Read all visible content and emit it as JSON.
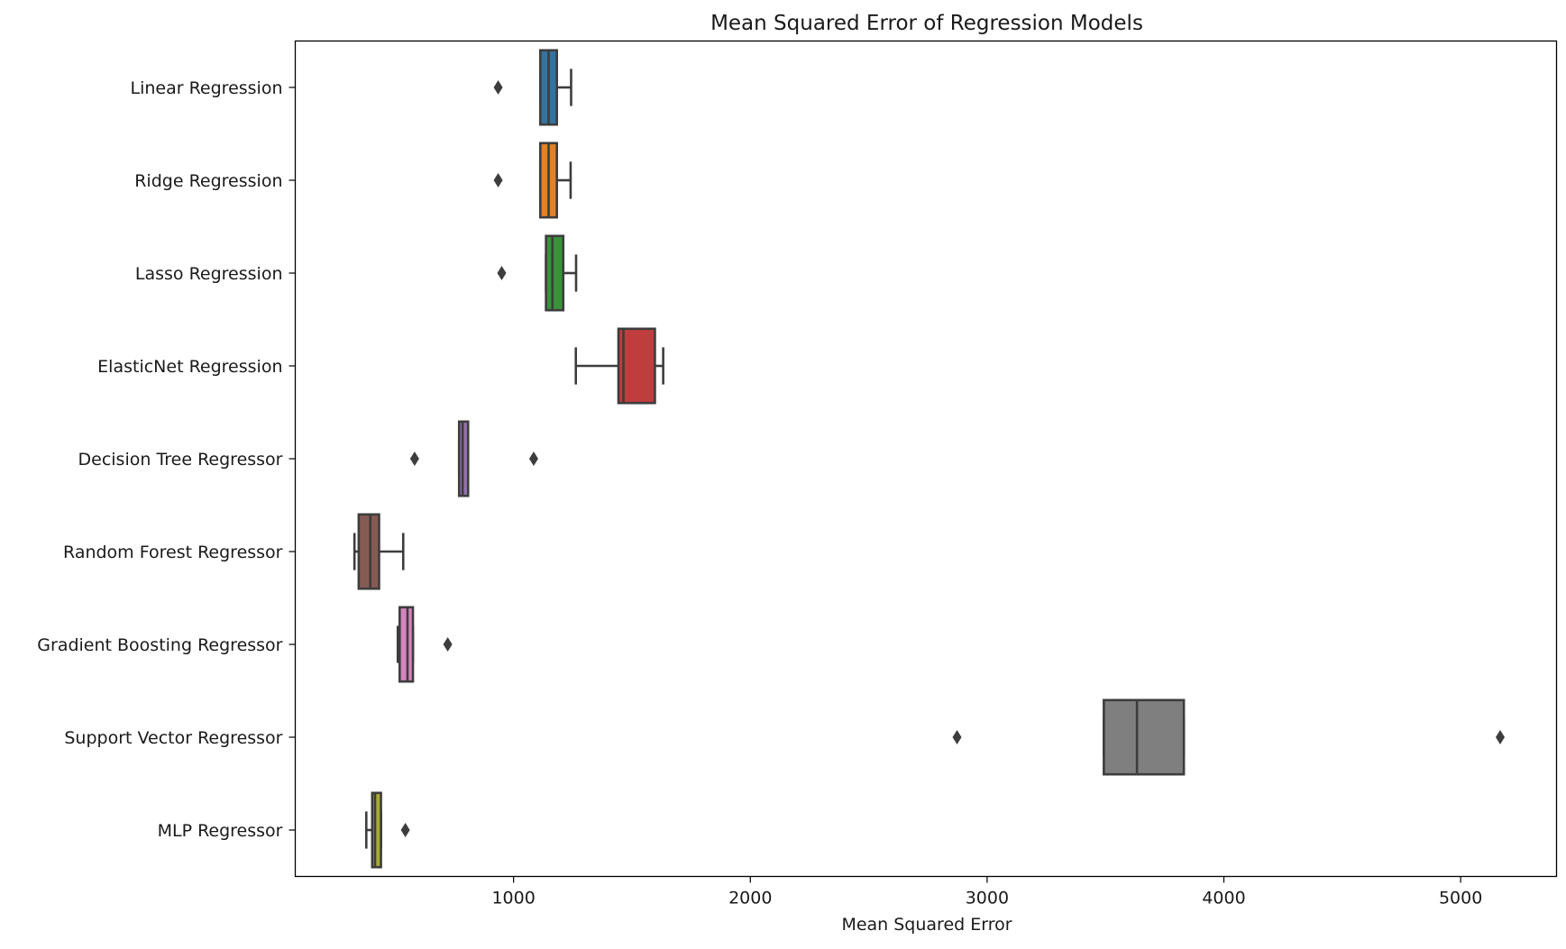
{
  "chart_data": {
    "type": "box",
    "orientation": "horizontal",
    "title": "Mean Squared Error of Regression Models",
    "xlabel": "Mean Squared Error",
    "ylabel": "",
    "xlim": [
      78,
      5405
    ],
    "xticks": [
      1000,
      2000,
      3000,
      4000,
      5000
    ],
    "grid": false,
    "series": [
      {
        "name": "Linear Regression",
        "color": "#3274a1",
        "q1": 1113,
        "median": 1148,
        "q3": 1183,
        "whisker_low": 1113,
        "whisker_high": 1243,
        "outliers": [
          935
        ]
      },
      {
        "name": "Ridge Regression",
        "color": "#e1812c",
        "q1": 1113,
        "median": 1148,
        "q3": 1183,
        "whisker_low": 1113,
        "whisker_high": 1241,
        "outliers": [
          935
        ]
      },
      {
        "name": "Lasso Regression",
        "color": "#3a923a",
        "q1": 1137,
        "median": 1164,
        "q3": 1210,
        "whisker_low": 1137,
        "whisker_high": 1264,
        "outliers": [
          950
        ]
      },
      {
        "name": "ElasticNet Regression",
        "color": "#c03d3e",
        "q1": 1443,
        "median": 1464,
        "q3": 1597,
        "whisker_low": 1263,
        "whisker_high": 1632,
        "outliers": []
      },
      {
        "name": "Decision Tree Regressor",
        "color": "#9372b2",
        "q1": 770,
        "median": 785,
        "q3": 808,
        "whisker_low": 770,
        "whisker_high": 808,
        "outliers": [
          582,
          1085
        ]
      },
      {
        "name": "Random Forest Regressor",
        "color": "#845b53",
        "q1": 346,
        "median": 395,
        "q3": 432,
        "whisker_low": 328,
        "whisker_high": 534,
        "outliers": []
      },
      {
        "name": "Gradient Boosting Regressor",
        "color": "#d684bd",
        "q1": 519,
        "median": 552,
        "q3": 575,
        "whisker_low": 511,
        "whisker_high": 575,
        "outliers": [
          722
        ]
      },
      {
        "name": "Support Vector Regressor",
        "color": "#7f7f7f",
        "q1": 3493,
        "median": 3633,
        "q3": 3831,
        "whisker_low": 3493,
        "whisker_high": 3831,
        "outliers": [
          2873,
          5167
        ]
      },
      {
        "name": "MLP Regressor",
        "color": "#a9aa35",
        "q1": 403,
        "median": 415,
        "q3": 440,
        "whisker_low": 378,
        "whisker_high": 440,
        "outliers": [
          543
        ]
      }
    ]
  }
}
